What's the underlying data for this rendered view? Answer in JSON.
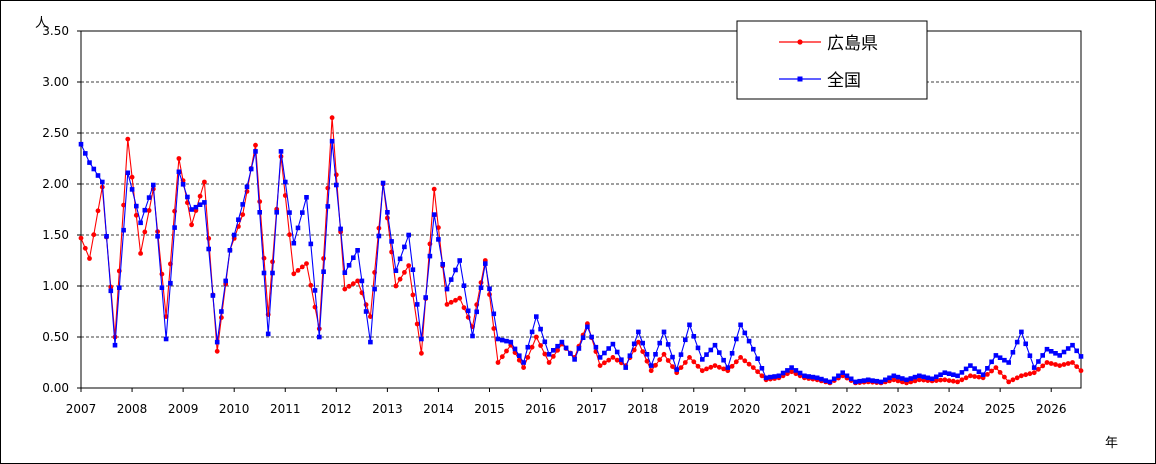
{
  "chart_data": {
    "type": "line",
    "title": "",
    "xlabel": "年",
    "ylabel": "人",
    "ylim": [
      0,
      3.5
    ],
    "y_ticks": [
      "0.00",
      "0.50",
      "1.00",
      "1.50",
      "2.00",
      "2.50",
      "3.00",
      "3.50"
    ],
    "x_ticks": [
      "2007",
      "2008",
      "2009",
      "2010",
      "2011",
      "2012",
      "2013",
      "2014",
      "2015",
      "2016",
      "2017",
      "2018",
      "2019",
      "2020",
      "2021",
      "2022",
      "2023",
      "2024",
      "2025",
      "2026"
    ],
    "x_domain": [
      "2007-01",
      "2026-08"
    ],
    "gridlines": "horizontal dashed",
    "legend_position": "top-right",
    "colors": {
      "hiroshima": "#ff0000",
      "national": "#0000ff"
    },
    "series": [
      {
        "name": "広島県",
        "marker": "circle",
        "anchors": [
          [
            "2007-01",
            1.47
          ],
          [
            "2007-03",
            1.27
          ],
          [
            "2007-06",
            1.97
          ],
          [
            "2007-09",
            0.5
          ],
          [
            "2007-12",
            2.44
          ],
          [
            "2008-03",
            1.32
          ],
          [
            "2008-06",
            1.95
          ],
          [
            "2008-09",
            0.7
          ],
          [
            "2008-12",
            2.25
          ],
          [
            "2009-03",
            1.6
          ],
          [
            "2009-06",
            2.02
          ],
          [
            "2009-09",
            0.36
          ],
          [
            "2009-12",
            1.35
          ],
          [
            "2010-03",
            1.7
          ],
          [
            "2010-06",
            2.38
          ],
          [
            "2010-09",
            0.72
          ],
          [
            "2010-12",
            2.27
          ],
          [
            "2011-03",
            1.12
          ],
          [
            "2011-06",
            1.22
          ],
          [
            "2011-09",
            0.58
          ],
          [
            "2011-12",
            2.65
          ],
          [
            "2012-03",
            0.97
          ],
          [
            "2012-06",
            1.05
          ],
          [
            "2012-09",
            0.7
          ],
          [
            "2012-12",
            2.0
          ],
          [
            "2013-03",
            1.0
          ],
          [
            "2013-06",
            1.2
          ],
          [
            "2013-09",
            0.34
          ],
          [
            "2013-12",
            1.95
          ],
          [
            "2014-03",
            0.82
          ],
          [
            "2014-06",
            0.88
          ],
          [
            "2014-09",
            0.6
          ],
          [
            "2014-12",
            1.25
          ],
          [
            "2015-03",
            0.25
          ],
          [
            "2015-06",
            0.42
          ],
          [
            "2015-09",
            0.2
          ],
          [
            "2015-12",
            0.5
          ],
          [
            "2016-03",
            0.25
          ],
          [
            "2016-06",
            0.43
          ],
          [
            "2016-09",
            0.3
          ],
          [
            "2016-12",
            0.63
          ],
          [
            "2017-03",
            0.22
          ],
          [
            "2017-06",
            0.3
          ],
          [
            "2017-09",
            0.22
          ],
          [
            "2017-12",
            0.45
          ],
          [
            "2018-03",
            0.17
          ],
          [
            "2018-06",
            0.33
          ],
          [
            "2018-09",
            0.15
          ],
          [
            "2018-12",
            0.3
          ],
          [
            "2019-03",
            0.17
          ],
          [
            "2019-06",
            0.22
          ],
          [
            "2019-09",
            0.17
          ],
          [
            "2019-12",
            0.3
          ],
          [
            "2020-03",
            0.2
          ],
          [
            "2020-06",
            0.08
          ],
          [
            "2020-09",
            0.1
          ],
          [
            "2020-12",
            0.16
          ],
          [
            "2021-03",
            0.1
          ],
          [
            "2021-06",
            0.08
          ],
          [
            "2021-09",
            0.05
          ],
          [
            "2021-12",
            0.12
          ],
          [
            "2022-03",
            0.05
          ],
          [
            "2022-06",
            0.06
          ],
          [
            "2022-09",
            0.05
          ],
          [
            "2022-12",
            0.08
          ],
          [
            "2023-03",
            0.05
          ],
          [
            "2023-06",
            0.08
          ],
          [
            "2023-09",
            0.07
          ],
          [
            "2023-12",
            0.08
          ],
          [
            "2024-03",
            0.06
          ],
          [
            "2024-06",
            0.12
          ],
          [
            "2024-09",
            0.1
          ],
          [
            "2024-12",
            0.2
          ],
          [
            "2025-03",
            0.06
          ],
          [
            "2025-06",
            0.12
          ],
          [
            "2025-09",
            0.15
          ],
          [
            "2025-12",
            0.25
          ],
          [
            "2026-03",
            0.22
          ],
          [
            "2026-06",
            0.25
          ],
          [
            "2026-08",
            0.17
          ]
        ]
      },
      {
        "name": "全国",
        "marker": "square",
        "anchors": [
          [
            "2007-01",
            2.39
          ],
          [
            "2007-03",
            2.21
          ],
          [
            "2007-06",
            2.02
          ],
          [
            "2007-09",
            0.42
          ],
          [
            "2007-12",
            2.11
          ],
          [
            "2008-03",
            1.62
          ],
          [
            "2008-06",
            1.99
          ],
          [
            "2008-09",
            0.48
          ],
          [
            "2008-12",
            2.12
          ],
          [
            "2009-03",
            1.75
          ],
          [
            "2009-06",
            1.82
          ],
          [
            "2009-09",
            0.45
          ],
          [
            "2009-12",
            1.35
          ],
          [
            "2010-03",
            1.8
          ],
          [
            "2010-06",
            2.32
          ],
          [
            "2010-09",
            0.53
          ],
          [
            "2010-12",
            2.32
          ],
          [
            "2011-03",
            1.42
          ],
          [
            "2011-06",
            1.87
          ],
          [
            "2011-09",
            0.5
          ],
          [
            "2011-12",
            2.42
          ],
          [
            "2012-03",
            1.13
          ],
          [
            "2012-06",
            1.35
          ],
          [
            "2012-09",
            0.45
          ],
          [
            "2012-12",
            2.01
          ],
          [
            "2013-03",
            1.15
          ],
          [
            "2013-06",
            1.5
          ],
          [
            "2013-09",
            0.48
          ],
          [
            "2013-12",
            1.7
          ],
          [
            "2014-03",
            0.97
          ],
          [
            "2014-06",
            1.25
          ],
          [
            "2014-09",
            0.51
          ],
          [
            "2014-12",
            1.22
          ],
          [
            "2015-03",
            0.48
          ],
          [
            "2015-06",
            0.45
          ],
          [
            "2015-09",
            0.25
          ],
          [
            "2015-12",
            0.7
          ],
          [
            "2016-03",
            0.33
          ],
          [
            "2016-06",
            0.45
          ],
          [
            "2016-09",
            0.28
          ],
          [
            "2016-12",
            0.6
          ],
          [
            "2017-03",
            0.3
          ],
          [
            "2017-06",
            0.43
          ],
          [
            "2017-09",
            0.2
          ],
          [
            "2017-12",
            0.55
          ],
          [
            "2018-03",
            0.22
          ],
          [
            "2018-06",
            0.55
          ],
          [
            "2018-09",
            0.18
          ],
          [
            "2018-12",
            0.62
          ],
          [
            "2019-03",
            0.28
          ],
          [
            "2019-06",
            0.42
          ],
          [
            "2019-09",
            0.2
          ],
          [
            "2019-12",
            0.62
          ],
          [
            "2020-03",
            0.38
          ],
          [
            "2020-06",
            0.1
          ],
          [
            "2020-09",
            0.12
          ],
          [
            "2020-12",
            0.2
          ],
          [
            "2021-03",
            0.12
          ],
          [
            "2021-06",
            0.1
          ],
          [
            "2021-09",
            0.06
          ],
          [
            "2021-12",
            0.15
          ],
          [
            "2022-03",
            0.06
          ],
          [
            "2022-06",
            0.08
          ],
          [
            "2022-09",
            0.06
          ],
          [
            "2022-12",
            0.12
          ],
          [
            "2023-03",
            0.08
          ],
          [
            "2023-06",
            0.12
          ],
          [
            "2023-09",
            0.09
          ],
          [
            "2023-12",
            0.15
          ],
          [
            "2024-03",
            0.12
          ],
          [
            "2024-06",
            0.22
          ],
          [
            "2024-09",
            0.13
          ],
          [
            "2024-12",
            0.32
          ],
          [
            "2025-03",
            0.25
          ],
          [
            "2025-06",
            0.55
          ],
          [
            "2025-09",
            0.2
          ],
          [
            "2025-12",
            0.38
          ],
          [
            "2026-03",
            0.32
          ],
          [
            "2026-06",
            0.42
          ],
          [
            "2026-08",
            0.31
          ]
        ]
      }
    ]
  }
}
